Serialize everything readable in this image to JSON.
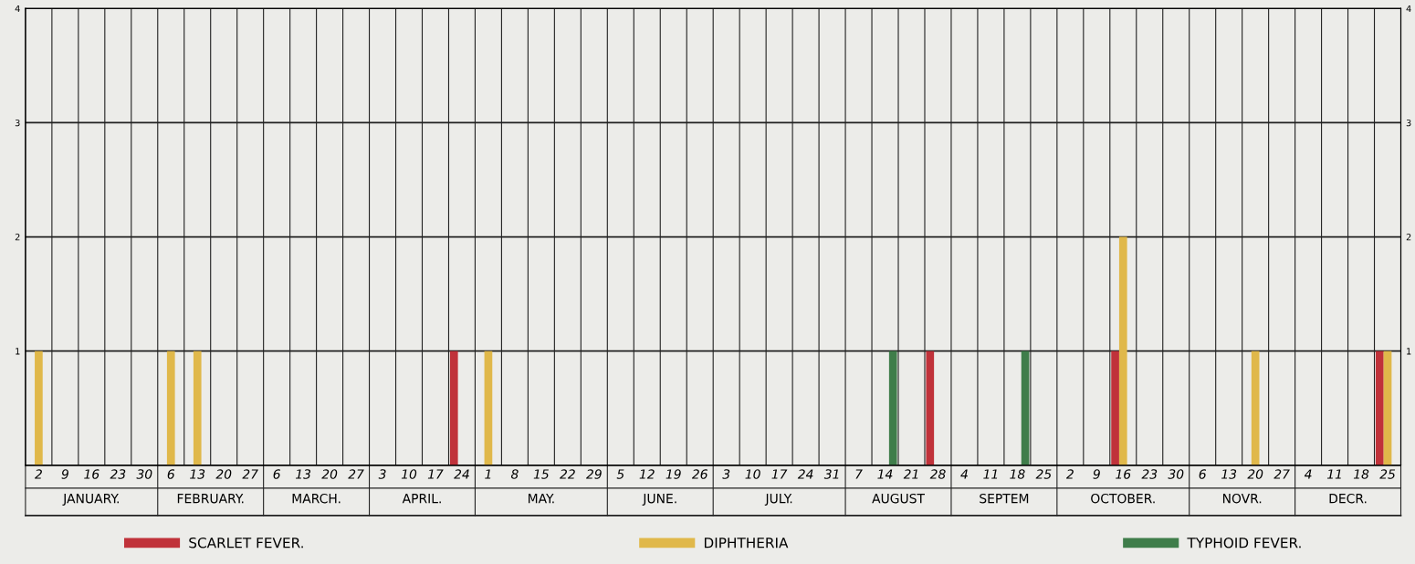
{
  "chart_data": {
    "type": "bar",
    "categories": [
      "2",
      "9",
      "16",
      "23",
      "30",
      "6",
      "13",
      "20",
      "27",
      "6",
      "13",
      "20",
      "27",
      "3",
      "10",
      "17",
      "24",
      "1",
      "8",
      "15",
      "22",
      "29",
      "5",
      "12",
      "19",
      "26",
      "3",
      "10",
      "17",
      "24",
      "31",
      "7",
      "14",
      "21",
      "28",
      "4",
      "11",
      "18",
      "25",
      "2",
      "9",
      "16",
      "23",
      "30",
      "6",
      "13",
      "20",
      "27",
      "4",
      "11",
      "18",
      "25"
    ],
    "series": [
      {
        "name": "SCARLET FEVER.",
        "color": "#c0323a",
        "values": [
          0,
          0,
          0,
          0,
          0,
          0,
          0,
          0,
          0,
          0,
          0,
          0,
          0,
          0,
          0,
          0,
          1,
          0,
          0,
          0,
          0,
          0,
          0,
          0,
          0,
          0,
          0,
          0,
          0,
          0,
          0,
          0,
          0,
          0,
          1,
          0,
          0,
          0,
          0,
          0,
          0,
          1,
          0,
          0,
          0,
          0,
          0,
          0,
          0,
          0,
          0,
          1
        ]
      },
      {
        "name": "DIPHTHERIA",
        "color": "#e0b84a",
        "values": [
          1,
          0,
          0,
          0,
          0,
          1,
          1,
          0,
          0,
          0,
          0,
          0,
          0,
          0,
          0,
          0,
          0,
          1,
          0,
          0,
          0,
          0,
          0,
          0,
          0,
          0,
          0,
          0,
          0,
          0,
          0,
          0,
          0,
          0,
          0,
          0,
          0,
          0,
          0,
          0,
          0,
          2,
          0,
          0,
          0,
          0,
          1,
          0,
          0,
          0,
          0,
          1
        ]
      },
      {
        "name": "TYPHOID FEVER.",
        "color": "#3f7d4a",
        "values": [
          0,
          0,
          0,
          0,
          0,
          0,
          0,
          0,
          0,
          0,
          0,
          0,
          0,
          0,
          0,
          0,
          0,
          0,
          0,
          0,
          0,
          0,
          0,
          0,
          0,
          0,
          0,
          0,
          0,
          0,
          0,
          0,
          1,
          0,
          0,
          0,
          0,
          1,
          0,
          0,
          0,
          0,
          0,
          0,
          0,
          0,
          0,
          0,
          0,
          0,
          0,
          0
        ]
      }
    ],
    "annotations": [
      "JANUARY.",
      "FEBRUARY.",
      "MARCH.",
      "APRIL.",
      "MAY.",
      "JUNE.",
      "JULY.",
      "AUGUST",
      "SEPTEM",
      "OCTOBER.",
      "NOVR.",
      "DECR."
    ],
    "ylim": [
      0,
      4
    ],
    "yticks": [
      1,
      2,
      3,
      4
    ],
    "y2lim": [
      0,
      4
    ],
    "y2ticks": [
      1,
      2,
      3,
      4
    ],
    "grid": true,
    "legend": "bottom"
  }
}
